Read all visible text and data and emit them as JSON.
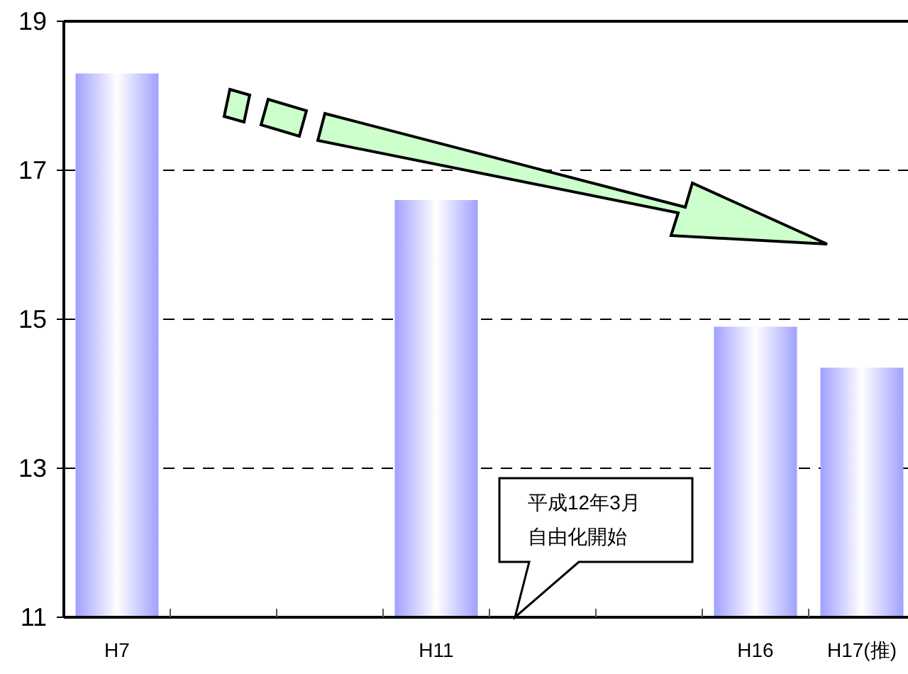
{
  "chart_data": {
    "type": "bar",
    "categories": [
      "H7",
      null,
      null,
      "H11",
      null,
      null,
      "H16",
      "H17(推)"
    ],
    "values": [
      18.3,
      null,
      null,
      16.6,
      null,
      null,
      14.9,
      14.35
    ],
    "color": "#a0a0ff",
    "ylim": [
      11,
      19
    ],
    "yticks": [
      11,
      13,
      15,
      17,
      19
    ],
    "grid": "y",
    "annotations": [
      "平成12年3月",
      "自由化開始"
    ]
  }
}
